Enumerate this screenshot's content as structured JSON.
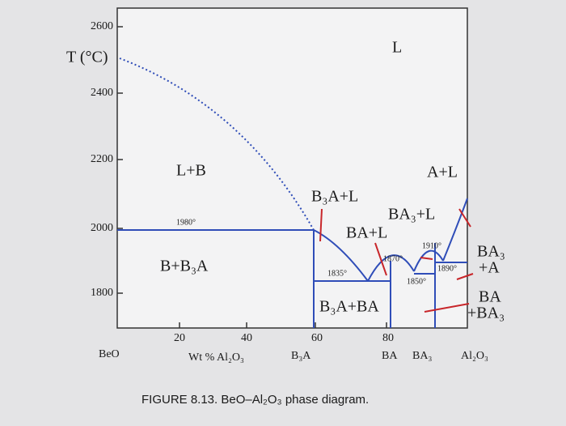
{
  "figure": {
    "caption": "FIGURE 8.13. BeO–Al₂O₃ phase diagram.",
    "y_axis": {
      "label": "T (°C)",
      "ticks": [
        "2600",
        "2400",
        "2200",
        "2000",
        "1800"
      ]
    },
    "x_axis": {
      "label": "Wt % Al₂O₃",
      "ticks": [
        "20",
        "40",
        "60",
        "80"
      ],
      "compounds": [
        "BeO",
        "B₃A",
        "BA",
        "BA₃",
        "Al₂O₃"
      ]
    },
    "regions": [
      "L",
      "L+B",
      "B+B₃A",
      "B₃A+L",
      "BA+L",
      "BA₃+L",
      "A+L",
      "B₃A+BA",
      [
        "BA₃",
        "+A"
      ],
      [
        "BA",
        "+BA₃"
      ]
    ],
    "temperatures": [
      "1980°",
      "1835°",
      "1870°",
      "1910°",
      "1890°",
      "1850°"
    ]
  }
}
